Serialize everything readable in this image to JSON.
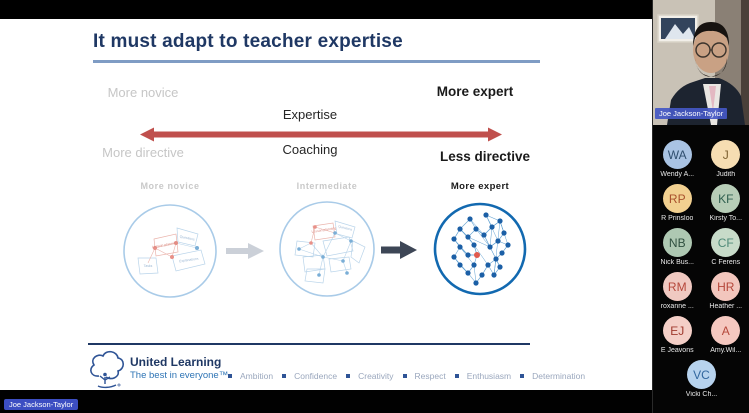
{
  "slide": {
    "title": "It must adapt to teacher expertise",
    "spectrum": {
      "left_top": "More novice",
      "left_bottom": "More directive",
      "center_top": "Expertise",
      "center_bottom": "Coaching",
      "right_top": "More expert",
      "right_bottom": "Less directive",
      "arrow_color": "#c0504d"
    },
    "stages": [
      {
        "label": "More novice"
      },
      {
        "label": "Intermediate"
      },
      {
        "label": "More expert"
      }
    ],
    "networks": {
      "novice": {
        "labels": [
          "Lesson planning",
          "Questions",
          "Explanations",
          "Tasks"
        ]
      },
      "intermediate": {
        "labels": [
          "Lesson planning",
          "Questions"
        ]
      }
    },
    "footer": {
      "org_name": "United Learning",
      "tagline": "The best in everyone™",
      "values": [
        "Ambition",
        "Confidence",
        "Creativity",
        "Respect",
        "Enthusiasm",
        "Determination"
      ],
      "accent_color": "#2f5496"
    }
  },
  "participants": {
    "video": {
      "name": "Joe Jackson-Taylor"
    },
    "avatars": [
      {
        "initials": "WA",
        "name": "Wendy A...",
        "bg": "#a9c3e3",
        "fg": "#2f4e6e"
      },
      {
        "initials": "J",
        "name": "Judith",
        "bg": "#f6ddb2",
        "fg": "#7d6030"
      },
      {
        "initials": "RP",
        "name": "R Prinsloo",
        "bg": "#f2d090",
        "fg": "#a8502c"
      },
      {
        "initials": "KF",
        "name": "Kirsty To...",
        "bg": "#b7cdb7",
        "fg": "#2f5f4f"
      },
      {
        "initials": "NB",
        "name": "Nick Bus...",
        "bg": "#aec8b2",
        "fg": "#2f4f3f"
      },
      {
        "initials": "CF",
        "name": "C Ferens",
        "bg": "#c7dbc9",
        "fg": "#4f8a78"
      },
      {
        "initials": "RM",
        "name": "roxanne ...",
        "bg": "#f0c9c1",
        "fg": "#b5473a"
      },
      {
        "initials": "HR",
        "name": "Heather ...",
        "bg": "#f2c6bd",
        "fg": "#b5473a"
      },
      {
        "initials": "EJ",
        "name": "E Jeavons",
        "bg": "#f4cfc7",
        "fg": "#a03a2e"
      },
      {
        "initials": "A",
        "name": "Amy.Wil...",
        "bg": "#f5c8c0",
        "fg": "#b5473a"
      },
      {
        "initials": "VC",
        "name": "Vicki Ch...",
        "bg": "#b7d3ee",
        "fg": "#31669e"
      }
    ]
  },
  "bottom_bar": {
    "active_speaker": "Joe Jackson-Taylor"
  }
}
